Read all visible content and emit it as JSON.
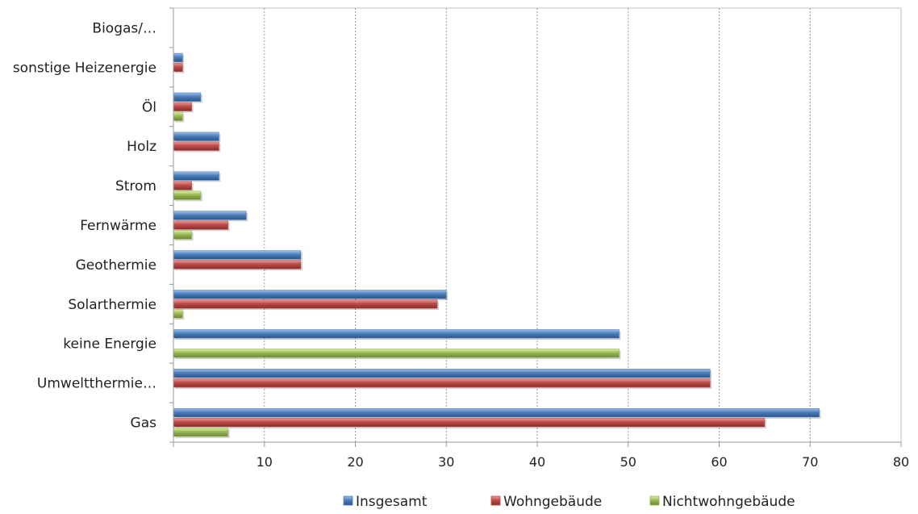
{
  "chart_data": {
    "type": "bar",
    "orientation": "horizontal",
    "categories": [
      "Gas",
      "Umweltthermie…",
      "keine Energie",
      "Solarthermie",
      "Geothermie",
      "Fernwärme",
      "Strom",
      "Holz",
      "Öl",
      "sonstige Heizenergie",
      "Biogas/…"
    ],
    "series": [
      {
        "name": "Insgesamt",
        "color": "#4a7ebb",
        "values": [
          71,
          59,
          49,
          30,
          14,
          8,
          5,
          5,
          3,
          1,
          0
        ]
      },
      {
        "name": "Wohngebäude",
        "color": "#be4b48",
        "values": [
          65,
          59,
          0,
          29,
          14,
          6,
          2,
          5,
          2,
          1,
          0
        ]
      },
      {
        "name": "Nichtwohngebäude",
        "color": "#98b954",
        "values": [
          6,
          0,
          49,
          1,
          0,
          2,
          3,
          0,
          1,
          0,
          0
        ]
      }
    ],
    "xlim": [
      0,
      80
    ],
    "xticks": [
      "10",
      "20",
      "30",
      "40",
      "50",
      "60",
      "70",
      "80"
    ],
    "grid": "vertical dotted",
    "legend_position": "bottom"
  }
}
